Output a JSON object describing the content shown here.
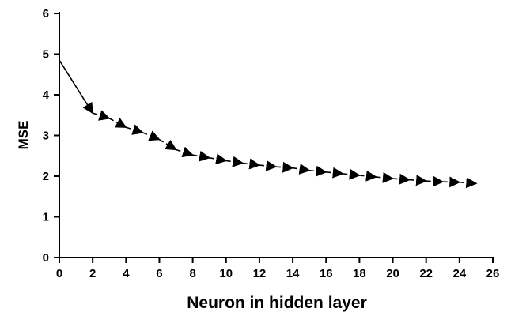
{
  "chart_data": {
    "type": "line",
    "title": "",
    "xlabel": "Neuron in hidden layer",
    "ylabel": "MSE",
    "xlim": [
      0,
      26
    ],
    "ylim": [
      0,
      6
    ],
    "x_ticks": [
      0,
      2,
      4,
      6,
      8,
      10,
      12,
      14,
      16,
      18,
      20,
      22,
      24,
      26
    ],
    "y_ticks": [
      0,
      1,
      2,
      3,
      4,
      5,
      6
    ],
    "grid": false,
    "legend": "none",
    "series": [
      {
        "color": "#000000",
        "line_style": "dashed",
        "marker": "arrow",
        "x": [
          0,
          2,
          3,
          4,
          5,
          6,
          7,
          8,
          9,
          10,
          11,
          12,
          13,
          14,
          15,
          16,
          17,
          18,
          19,
          20,
          21,
          22,
          23,
          24,
          25
        ],
        "y": [
          4.85,
          3.55,
          3.42,
          3.2,
          3.07,
          2.9,
          2.65,
          2.52,
          2.45,
          2.38,
          2.32,
          2.27,
          2.23,
          2.2,
          2.14,
          2.1,
          2.06,
          2.02,
          1.98,
          1.94,
          1.91,
          1.88,
          1.86,
          1.85,
          1.82
        ]
      }
    ]
  }
}
